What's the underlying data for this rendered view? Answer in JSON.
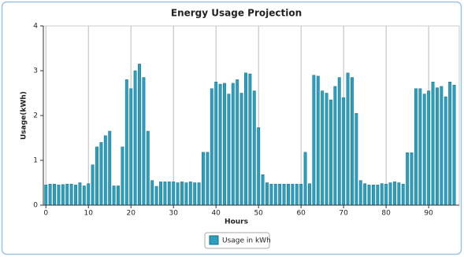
{
  "chart_data": {
    "type": "bar",
    "title": "Energy Usage Projection",
    "x_label": "Hours",
    "y_label": "Usage(kWh)",
    "x": [
      0,
      1,
      2,
      3,
      4,
      5,
      6,
      7,
      8,
      9,
      10,
      11,
      12,
      13,
      14,
      15,
      16,
      17,
      18,
      19,
      20,
      21,
      22,
      23,
      24,
      25,
      26,
      27,
      28,
      29,
      30,
      31,
      32,
      33,
      34,
      35,
      36,
      37,
      38,
      39,
      40,
      41,
      42,
      43,
      44,
      45,
      46,
      47,
      48,
      49,
      50,
      51,
      52,
      53,
      54,
      55,
      56,
      57,
      58,
      59,
      60,
      61,
      62,
      63,
      64,
      65,
      66,
      67,
      68,
      69,
      70,
      71,
      72,
      73,
      74,
      75,
      76,
      77,
      78,
      79,
      80,
      81,
      82,
      83,
      84,
      85,
      86,
      87,
      88,
      89,
      90,
      91,
      92,
      93,
      94,
      95,
      96
    ],
    "series": [
      {
        "name": "Usage in kWh",
        "color": "#2a9fbf",
        "values": [
          0.45,
          0.47,
          0.47,
          0.45,
          0.46,
          0.47,
          0.47,
          0.45,
          0.5,
          0.43,
          0.48,
          0.9,
          1.3,
          1.4,
          1.55,
          1.65,
          0.43,
          0.43,
          1.3,
          2.8,
          2.6,
          3.0,
          3.15,
          2.85,
          1.65,
          0.55,
          0.42,
          0.52,
          0.52,
          0.52,
          0.52,
          0.5,
          0.52,
          0.5,
          0.52,
          0.5,
          0.5,
          1.18,
          1.18,
          2.6,
          2.75,
          2.7,
          2.72,
          2.48,
          2.72,
          2.8,
          2.5,
          2.95,
          2.93,
          2.55,
          1.73,
          0.68,
          0.5,
          0.47,
          0.47,
          0.47,
          0.47,
          0.47,
          0.47,
          0.47,
          0.47,
          1.18,
          0.48,
          2.9,
          2.88,
          2.55,
          2.5,
          2.35,
          2.65,
          2.85,
          2.4,
          2.95,
          2.85,
          2.05,
          0.55,
          0.48,
          0.45,
          0.45,
          0.45,
          0.48,
          0.47,
          0.5,
          0.52,
          0.5,
          0.47,
          1.17,
          1.17,
          2.6,
          2.6,
          2.48,
          2.55,
          2.75,
          2.62,
          2.65,
          2.42,
          2.75,
          2.68
        ]
      }
    ],
    "xlim": [
      -0.6,
      97.2
    ],
    "xticks": [
      0,
      10,
      20,
      30,
      40,
      50,
      60,
      70,
      80,
      90
    ],
    "ylim": [
      0,
      4
    ],
    "yticks": [
      0,
      1,
      2,
      3,
      4
    ],
    "grid": "x",
    "legend": "bottom"
  }
}
